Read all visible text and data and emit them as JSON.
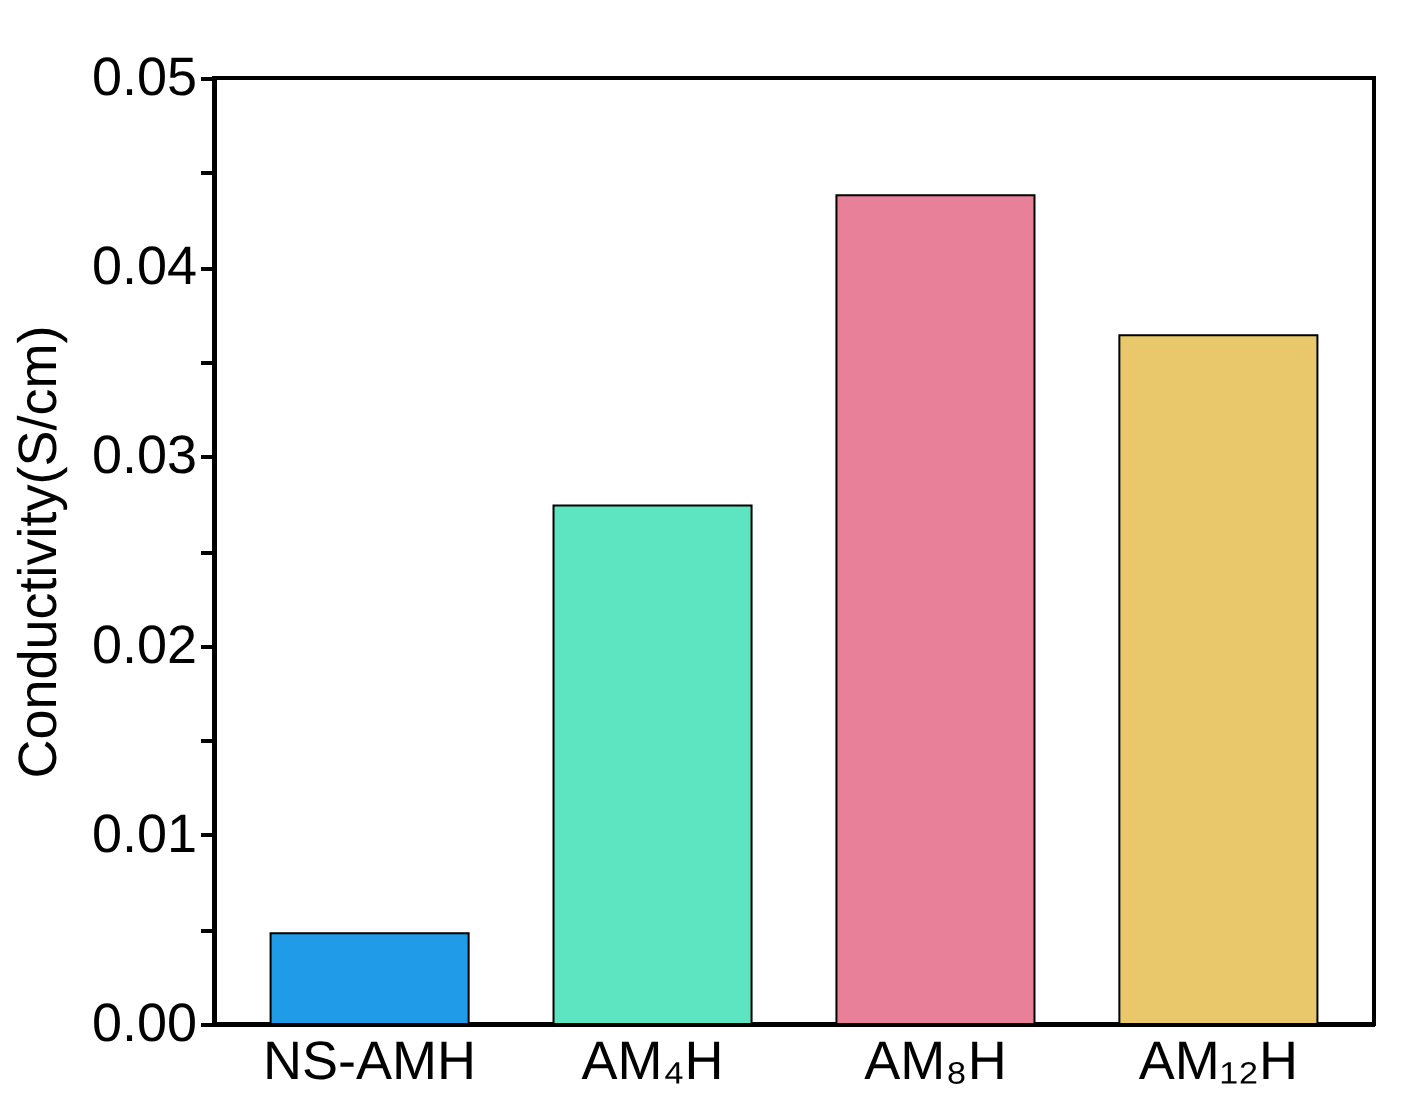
{
  "chart_data": {
    "type": "bar",
    "ylabel": "Conductivity(S/cm)",
    "categories": [
      "NS-AMH",
      "AM₄H",
      "AM₈H",
      "AM₁₂H"
    ],
    "values": [
      0.0048,
      0.0274,
      0.0438,
      0.0364
    ],
    "colors": [
      "#1f9be8",
      "#5ce5c0",
      "#e8809a",
      "#e8c86a"
    ],
    "ylim": [
      0,
      0.05
    ],
    "yticks": [
      {
        "value": 0,
        "label": "0.00"
      },
      {
        "value": 0.005,
        "label": null
      },
      {
        "value": 0.01,
        "label": "0.01"
      },
      {
        "value": 0.015,
        "label": null
      },
      {
        "value": 0.02,
        "label": "0.02"
      },
      {
        "value": 0.025,
        "label": null
      },
      {
        "value": 0.03,
        "label": "0.03"
      },
      {
        "value": 0.035,
        "label": null
      },
      {
        "value": 0.04,
        "label": "0.04"
      },
      {
        "value": 0.045,
        "label": null
      },
      {
        "value": 0.05,
        "label": "0.05"
      }
    ],
    "grid": false,
    "legend": false
  }
}
